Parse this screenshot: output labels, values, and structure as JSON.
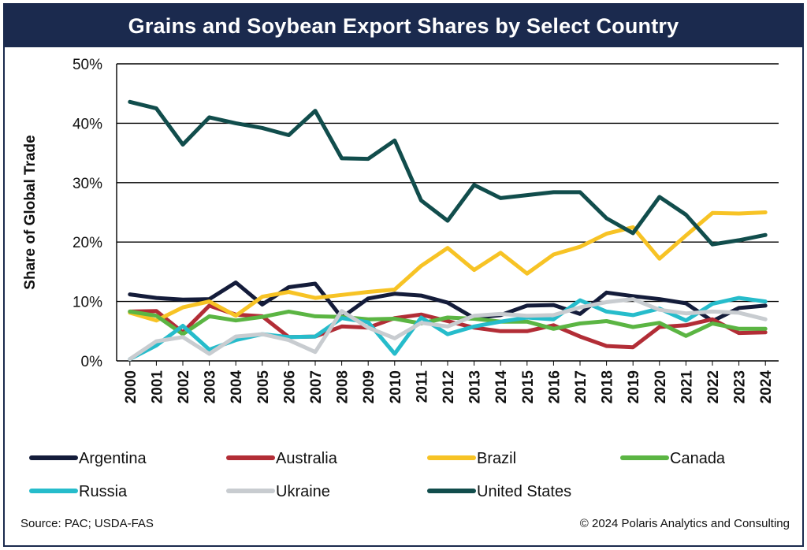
{
  "chart_data": {
    "type": "line",
    "title": "Grains and Soybean Export Shares by Select Country",
    "ylabel": "Share of Global Trade",
    "xlabel": "",
    "ylim": [
      0,
      50
    ],
    "ytick_labels": [
      "0%",
      "10%",
      "20%",
      "30%",
      "40%",
      "50%"
    ],
    "y_unit": "%",
    "grid": "horizontal",
    "legend_position": "bottom",
    "x": [
      "2000",
      "2001",
      "2002",
      "2003",
      "2004",
      "2005",
      "2006",
      "2007",
      "2008",
      "2009",
      "2010",
      "2011",
      "2012",
      "2013",
      "2014",
      "2015",
      "2016",
      "2017",
      "2018",
      "2019",
      "2020",
      "2021",
      "2022",
      "2023",
      "2024"
    ],
    "series": [
      {
        "name": "Argentina",
        "color": "#141c3a",
        "values": [
          11.2,
          10.6,
          10.3,
          10.4,
          13.2,
          9.5,
          12.4,
          13.0,
          7.3,
          10.5,
          11.3,
          11.0,
          9.8,
          7.2,
          7.7,
          9.3,
          9.4,
          7.9,
          11.5,
          10.9,
          10.4,
          9.7,
          6.7,
          8.9,
          9.3
        ]
      },
      {
        "name": "Australia",
        "color": "#b22d36",
        "values": [
          8.3,
          8.4,
          4.8,
          9.3,
          7.8,
          7.5,
          4.0,
          4.1,
          5.8,
          5.6,
          7.2,
          7.8,
          6.7,
          5.6,
          5.0,
          5.0,
          6.0,
          4.1,
          2.5,
          2.3,
          5.7,
          6.0,
          7.0,
          4.7,
          4.8
        ]
      },
      {
        "name": "Brazil",
        "color": "#f7c325",
        "values": [
          8.1,
          6.8,
          9.0,
          10.0,
          7.6,
          10.8,
          11.6,
          10.6,
          11.1,
          11.6,
          12.0,
          16.0,
          19.0,
          15.3,
          18.2,
          14.7,
          17.9,
          19.2,
          21.4,
          22.5,
          17.2,
          21.1,
          24.9,
          24.8,
          25.0
        ]
      },
      {
        "name": "Canada",
        "color": "#5bb543",
        "values": [
          8.3,
          7.6,
          4.5,
          7.5,
          6.8,
          7.4,
          8.3,
          7.5,
          7.4,
          7.0,
          7.1,
          6.3,
          7.3,
          7.1,
          6.6,
          6.6,
          5.4,
          6.3,
          6.7,
          5.7,
          6.4,
          4.2,
          6.3,
          5.4,
          5.4
        ]
      },
      {
        "name": "Russia",
        "color": "#26bccb",
        "values": [
          0.3,
          2.6,
          5.9,
          1.9,
          3.5,
          4.5,
          4.0,
          4.1,
          7.2,
          6.5,
          1.2,
          7.3,
          4.5,
          5.8,
          6.6,
          7.3,
          7.0,
          10.2,
          8.3,
          7.7,
          8.8,
          6.8,
          9.6,
          10.6,
          10.0
        ]
      },
      {
        "name": "Ukraine",
        "color": "#c8ccd0",
        "values": [
          0.3,
          3.3,
          4.0,
          1.2,
          4.1,
          4.5,
          3.5,
          1.5,
          8.4,
          5.6,
          3.8,
          6.4,
          5.8,
          7.6,
          7.9,
          7.6,
          7.7,
          9.0,
          9.9,
          10.4,
          8.6,
          8.0,
          8.3,
          8.1,
          7.0
        ]
      },
      {
        "name": "United States",
        "color": "#114d4c",
        "values": [
          43.6,
          42.5,
          36.4,
          41.0,
          40.0,
          39.2,
          38.0,
          42.1,
          34.1,
          34.0,
          37.1,
          27.0,
          23.6,
          29.6,
          27.4,
          27.9,
          28.4,
          28.4,
          24.0,
          21.5,
          27.6,
          24.6,
          19.6,
          20.3,
          21.2
        ]
      }
    ]
  },
  "footer": {
    "source": "Source: PAC; USDA-FAS",
    "copyright": "© 2024 Polaris Analytics and Consulting"
  }
}
